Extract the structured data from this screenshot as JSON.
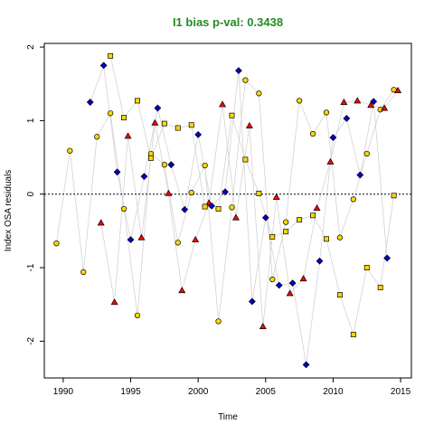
{
  "chart_data": {
    "type": "scatter",
    "title": "I1 bias p-val: 0.3438",
    "title_color": "#228B22",
    "xlabel": "Time",
    "ylabel": "Index OSA residuals",
    "xlim": [
      1988.6,
      2015.8
    ],
    "ylim": [
      -2.5,
      2.05
    ],
    "x_ticks": [
      1990,
      1995,
      2000,
      2005,
      2010,
      2015
    ],
    "x_tick_labels": [
      "1990",
      "1995",
      "2000",
      "2005",
      "2010",
      "2015"
    ],
    "y_ticks": [
      -2,
      -1,
      0,
      1,
      2
    ],
    "y_tick_labels": [
      "-2",
      "-1",
      "0",
      "1",
      "2"
    ],
    "reference_line": 0,
    "line_color": "#d3d3d3",
    "series": [
      {
        "marker": "circle",
        "fill": "#ffd700",
        "points": [
          [
            1989.5,
            -0.67
          ],
          [
            1990.5,
            0.59
          ],
          [
            1991.5,
            -1.06
          ],
          [
            1992.5,
            0.78
          ],
          [
            1993.5,
            1.1
          ],
          [
            1994.5,
            -0.2
          ],
          [
            1995.5,
            -1.65
          ],
          [
            1996.5,
            0.55
          ],
          [
            1997.5,
            0.4
          ],
          [
            1998.5,
            -0.66
          ],
          [
            1999.5,
            0.02
          ],
          [
            2000.5,
            0.39
          ],
          [
            2001.5,
            -1.73
          ],
          [
            2002.5,
            -0.18
          ],
          [
            2003.5,
            1.55
          ],
          [
            2004.5,
            1.37
          ],
          [
            2005.5,
            -1.16
          ],
          [
            2006.5,
            -0.38
          ],
          [
            2007.5,
            1.27
          ],
          [
            2008.5,
            0.82
          ],
          [
            2009.5,
            1.11
          ],
          [
            2010.5,
            -0.59
          ],
          [
            2011.5,
            -0.07
          ],
          [
            2012.5,
            0.55
          ],
          [
            2013.5,
            1.15
          ],
          [
            2014.5,
            1.42
          ]
        ]
      },
      {
        "marker": "triangle",
        "fill": "#ff0000",
        "points": [
          [
            1992.8,
            -0.39
          ],
          [
            1993.8,
            -1.47
          ],
          [
            1994.8,
            0.79
          ],
          [
            1995.8,
            -0.59
          ],
          [
            1996.8,
            0.97
          ],
          [
            1997.8,
            0.01
          ],
          [
            1998.8,
            -1.31
          ],
          [
            1999.8,
            -0.62
          ],
          [
            2000.8,
            -0.12
          ],
          [
            2001.8,
            1.22
          ],
          [
            2002.8,
            -0.32
          ],
          [
            2003.8,
            0.93
          ],
          [
            2004.8,
            -1.8
          ],
          [
            2005.8,
            -0.04
          ],
          [
            2006.8,
            -1.35
          ],
          [
            2007.8,
            -1.15
          ],
          [
            2008.8,
            -0.19
          ],
          [
            2009.8,
            0.44
          ],
          [
            2010.8,
            1.25
          ],
          [
            2011.8,
            1.27
          ],
          [
            2012.8,
            1.21
          ],
          [
            2013.8,
            1.17
          ],
          [
            2014.8,
            1.41
          ]
        ]
      },
      {
        "marker": "diamond",
        "fill": "#0000cd",
        "points": [
          [
            1992.0,
            1.25
          ],
          [
            1993.0,
            1.75
          ],
          [
            1994.0,
            0.3
          ],
          [
            1995.0,
            -0.62
          ],
          [
            1996.0,
            0.24
          ],
          [
            1997.0,
            1.17
          ],
          [
            1998.0,
            0.4
          ],
          [
            1999.0,
            -0.21
          ],
          [
            2000.0,
            0.81
          ],
          [
            2001.0,
            -0.16
          ],
          [
            2002.0,
            0.03
          ],
          [
            2003.0,
            1.68
          ],
          [
            2004.0,
            -1.46
          ],
          [
            2005.0,
            -0.32
          ],
          [
            2006.0,
            -1.24
          ],
          [
            2007.0,
            -1.21
          ],
          [
            2008.0,
            -2.32
          ],
          [
            2009.0,
            -0.91
          ],
          [
            2010.0,
            0.77
          ],
          [
            2011.0,
            1.03
          ],
          [
            2012.0,
            0.26
          ],
          [
            2013.0,
            1.26
          ],
          [
            2014.0,
            -0.87
          ]
        ]
      },
      {
        "marker": "square",
        "fill": "#ffd700",
        "points": [
          [
            1993.5,
            1.88
          ],
          [
            1994.5,
            1.04
          ],
          [
            1995.5,
            1.27
          ],
          [
            1996.5,
            0.49
          ],
          [
            1997.5,
            0.96
          ],
          [
            1998.5,
            0.9
          ],
          [
            1999.5,
            0.94
          ],
          [
            2000.5,
            -0.17
          ],
          [
            2001.5,
            -0.2
          ],
          [
            2002.5,
            1.07
          ],
          [
            2003.5,
            0.47
          ],
          [
            2004.5,
            0.01
          ],
          [
            2005.5,
            -0.58
          ],
          [
            2006.5,
            -0.51
          ],
          [
            2007.5,
            -0.35
          ],
          [
            2008.5,
            -0.29
          ],
          [
            2009.5,
            -0.61
          ],
          [
            2010.5,
            -1.37
          ],
          [
            2011.5,
            -1.91
          ],
          [
            2012.5,
            -1.0
          ],
          [
            2013.5,
            -1.27
          ],
          [
            2014.5,
            -0.02
          ]
        ]
      }
    ]
  }
}
